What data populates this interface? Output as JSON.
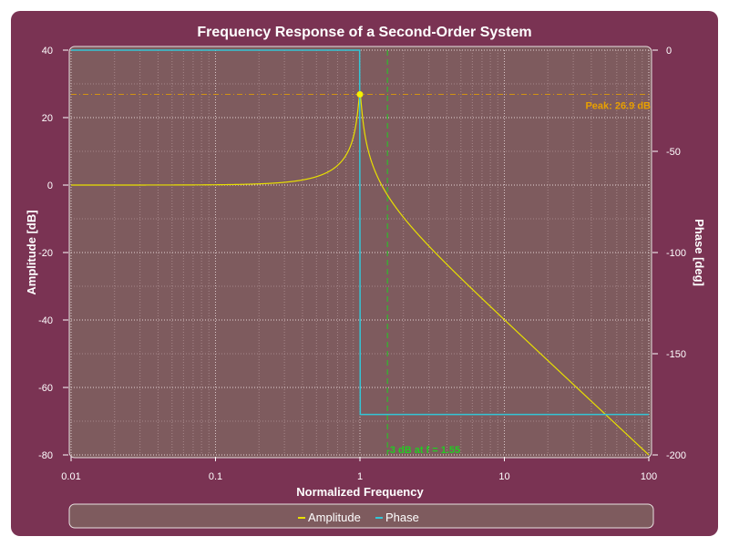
{
  "chart_data": {
    "type": "line",
    "title": "Frequency Response of a Second-Order System",
    "xlabel": "Normalized Frequency",
    "ylabel_left": "Amplitude [dB]",
    "ylabel_right": "Phase [deg]",
    "x_scale": "log",
    "xlim": [
      0.01,
      100
    ],
    "ylim_left": [
      -80,
      40
    ],
    "ylim_right": [
      -200,
      0
    ],
    "x_ticks": [
      "0.01",
      "0.1",
      "1",
      "10",
      "100"
    ],
    "y_ticks_left": [
      "40",
      "20",
      "0",
      "-20",
      "-40",
      "-60",
      "-80"
    ],
    "y_ticks_right": [
      "0",
      "-50",
      "-100",
      "-150",
      "-200"
    ],
    "grid": true,
    "legend_position": "bottom",
    "series": [
      {
        "name": "Amplitude",
        "axis": "left",
        "color": "#e8e000",
        "function": "second-order magnitude response, damping ratio 0.0226",
        "points": [
          [
            0.01,
            0.0
          ],
          [
            0.1,
            0.09
          ],
          [
            0.5,
            2.5
          ],
          [
            0.8,
            8.9
          ],
          [
            0.95,
            20.0
          ],
          [
            1.0,
            26.9
          ],
          [
            1.05,
            19.3
          ],
          [
            1.2,
            4.7
          ],
          [
            1.55,
            -3.0
          ],
          [
            2.0,
            -9.5
          ],
          [
            5.0,
            -27.6
          ],
          [
            10.0,
            -39.9
          ],
          [
            50.0,
            -68.0
          ],
          [
            100.0,
            -80.0
          ]
        ]
      },
      {
        "name": "Phase",
        "axis": "right",
        "color": "#33c6d6",
        "points": [
          [
            0.01,
            0
          ],
          [
            0.995,
            0
          ],
          [
            1.005,
            -180
          ],
          [
            100,
            -180
          ]
        ]
      }
    ],
    "annotations": {
      "peak": {
        "x": 1.0,
        "y": 26.9,
        "label": "Peak: 26.9 dB",
        "color": "#e8a000"
      },
      "cutoff": {
        "x": 1.55,
        "label": "-3 dB at f = 1.55",
        "color": "#22cc22"
      }
    }
  }
}
